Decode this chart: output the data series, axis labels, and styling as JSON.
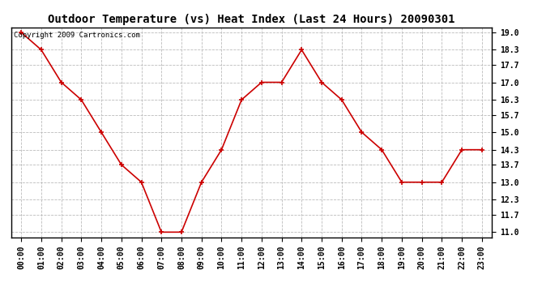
{
  "title": "Outdoor Temperature (vs) Heat Index (Last 24 Hours) 20090301",
  "copyright_text": "Copyright 2009 Cartronics.com",
  "x_labels": [
    "00:00",
    "01:00",
    "02:00",
    "03:00",
    "04:00",
    "05:00",
    "06:00",
    "07:00",
    "08:00",
    "09:00",
    "10:00",
    "11:00",
    "12:00",
    "13:00",
    "14:00",
    "15:00",
    "16:00",
    "17:00",
    "18:00",
    "19:00",
    "20:00",
    "21:00",
    "22:00",
    "23:00"
  ],
  "y_values": [
    19.0,
    18.3,
    17.0,
    16.3,
    15.0,
    13.7,
    13.0,
    11.0,
    11.0,
    13.0,
    14.3,
    16.3,
    17.0,
    17.0,
    18.3,
    17.0,
    16.3,
    15.0,
    14.3,
    13.0,
    13.0,
    13.0,
    14.3,
    14.3
  ],
  "y_ticks": [
    11.0,
    11.7,
    12.3,
    13.0,
    13.7,
    14.3,
    15.0,
    15.7,
    16.3,
    17.0,
    17.7,
    18.3,
    19.0
  ],
  "ylim": [
    10.8,
    19.2
  ],
  "line_color": "#cc0000",
  "marker": "+",
  "marker_color": "#cc0000",
  "bg_color": "#ffffff",
  "grid_color": "#bbbbbb",
  "title_fontsize": 10,
  "axis_fontsize": 7,
  "copyright_fontsize": 6.5
}
